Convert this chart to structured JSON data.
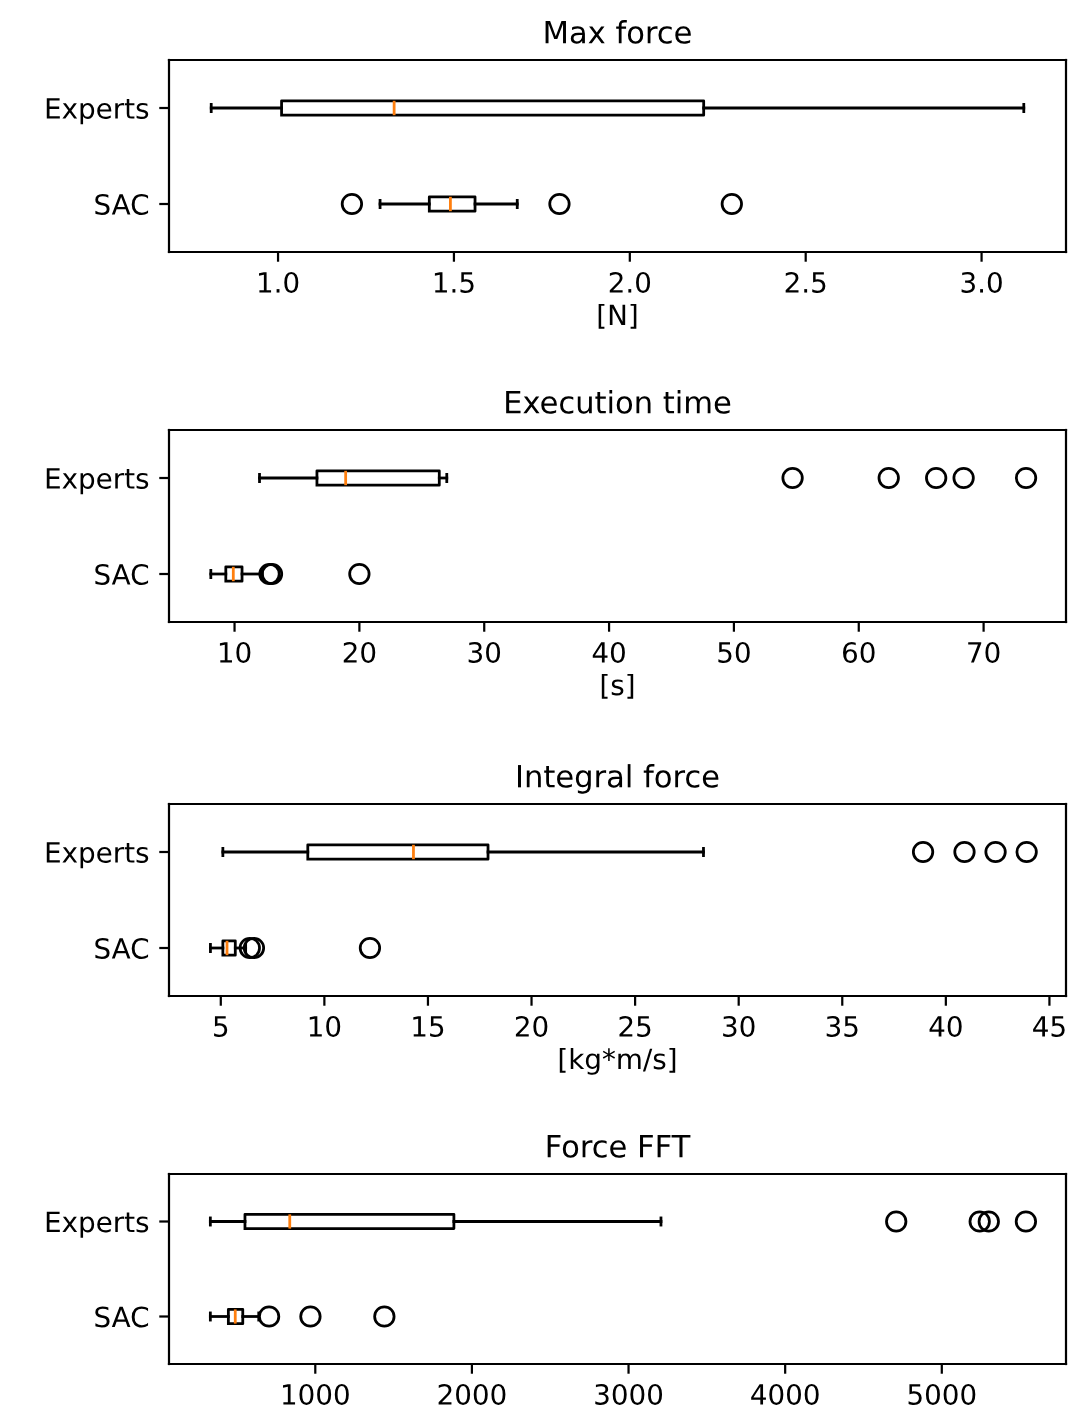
{
  "chart_data": [
    {
      "type": "box",
      "title": "Max force",
      "xlabel": "[N]",
      "orientation": "horizontal",
      "categories": [
        "Experts",
        "SAC"
      ],
      "xlim": [
        0.69,
        3.24
      ],
      "xticks": [
        {
          "value": 1,
          "label": "1.0"
        },
        1.5,
        {
          "value": 2,
          "label": "2.0"
        },
        2.5,
        {
          "value": 3,
          "label": "3.0"
        }
      ],
      "grid": false,
      "boxes": [
        {
          "low": 0.81,
          "q1": 1.01,
          "median": 1.33,
          "q3": 2.21,
          "high": 3.12
        },
        {
          "low": 1.29,
          "q1": 1.43,
          "median": 1.49,
          "q3": 1.56,
          "high": 1.68,
          "outliers": [
            1.21,
            1.8,
            2.29
          ]
        }
      ]
    },
    {
      "type": "box",
      "title": "Execution time",
      "xlabel": "[s]",
      "orientation": "horizontal",
      "categories": [
        "Experts",
        "SAC"
      ],
      "xlim": [
        4.75,
        76.6
      ],
      "xticks": [
        10,
        20,
        30,
        40,
        50,
        60,
        70
      ],
      "grid": false,
      "boxes": [
        {
          "low": 12.0,
          "q1": 16.6,
          "median": 18.9,
          "q3": 26.4,
          "high": 27.0,
          "outliers": [
            54.7,
            62.4,
            66.2,
            68.4,
            73.4
          ]
        },
        {
          "low": 8.1,
          "q1": 9.3,
          "median": 9.9,
          "q3": 10.6,
          "high": 12.2,
          "outliers": [
            12.8,
            13.0,
            20.0
          ]
        }
      ]
    },
    {
      "type": "box",
      "title": "Integral force",
      "xlabel": "[kg*m/s]",
      "orientation": "horizontal",
      "categories": [
        "Experts",
        "SAC"
      ],
      "xlim": [
        2.5,
        45.8
      ],
      "xticks": [
        5,
        10,
        15,
        20,
        25,
        30,
        35,
        40,
        45
      ],
      "grid": false,
      "boxes": [
        {
          "low": 5.1,
          "q1": 9.2,
          "median": 14.3,
          "q3": 17.9,
          "high": 28.3,
          "outliers": [
            38.9,
            40.9,
            42.4,
            43.9
          ]
        },
        {
          "low": 4.5,
          "q1": 5.1,
          "median": 5.3,
          "q3": 5.7,
          "high": 6.2,
          "outliers": [
            6.4,
            6.6,
            12.2
          ]
        }
      ]
    },
    {
      "type": "box",
      "title": "Force FFT",
      "orientation": "horizontal",
      "categories": [
        "Experts",
        "SAC"
      ],
      "xlim": [
        66,
        5793
      ],
      "xticks": [
        1000,
        2000,
        3000,
        4000,
        5000
      ],
      "grid": false,
      "boxes": [
        {
          "low": 330,
          "q1": 551,
          "median": 837,
          "q3": 1885,
          "high": 3207,
          "outliers": [
            4709,
            5242,
            5300,
            5537
          ]
        },
        {
          "low": 330,
          "q1": 445,
          "median": 489,
          "q3": 537,
          "high": 639,
          "outliers": [
            705,
            969,
            1441
          ]
        }
      ]
    }
  ]
}
